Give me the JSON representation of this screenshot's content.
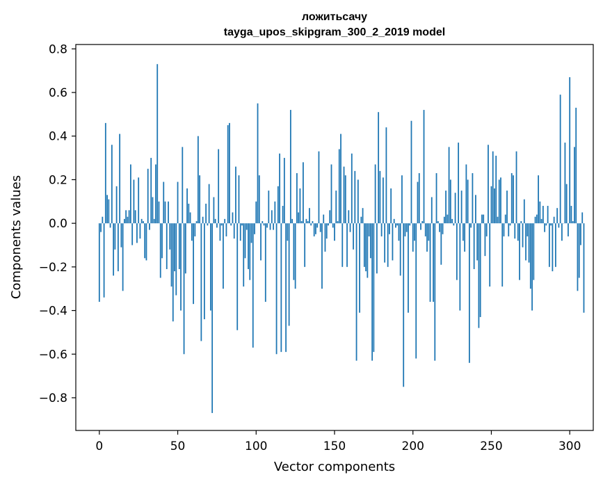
{
  "chart_data": {
    "type": "bar",
    "title": "ложитьсачу",
    "subtitle": "tayga_upos_skipgram_300_2_2019 model",
    "xlabel": "Vector components",
    "ylabel": "Components values",
    "xlim": [
      -15,
      315
    ],
    "ylim": [
      -0.95,
      0.82
    ],
    "xticks": [
      0,
      50,
      100,
      150,
      200,
      250,
      300
    ],
    "yticks": [
      -0.8,
      -0.6,
      -0.4,
      -0.2,
      0.0,
      0.2,
      0.4,
      0.6,
      0.8
    ],
    "ytick_labels": [
      "−0.8",
      "−0.6",
      "−0.4",
      "−0.2",
      "0.0",
      "0.2",
      "0.4",
      "0.6",
      "0.8"
    ],
    "grid": false,
    "bar_color": "#1f77b4",
    "values": [
      -0.36,
      -0.04,
      0.03,
      -0.34,
      0.46,
      0.13,
      0.11,
      -0.02,
      0.36,
      -0.24,
      -0.12,
      0.17,
      -0.22,
      0.41,
      -0.11,
      -0.31,
      0.02,
      0.06,
      0.03,
      0.06,
      0.27,
      -0.1,
      0.2,
      0.06,
      -0.09,
      0.21,
      -0.07,
      0.02,
      0.01,
      -0.16,
      -0.17,
      0.25,
      -0.03,
      0.3,
      0.12,
      0.02,
      0.27,
      0.73,
      0.1,
      -0.25,
      -0.16,
      0.19,
      0.1,
      -0.21,
      0.1,
      -0.12,
      -0.29,
      -0.45,
      -0.22,
      -0.33,
      0.19,
      -0.21,
      -0.4,
      0.35,
      -0.6,
      -0.23,
      0.16,
      0.09,
      0.05,
      -0.08,
      -0.37,
      -0.06,
      0.01,
      0.4,
      0.22,
      -0.54,
      0.03,
      -0.44,
      0.09,
      -0.01,
      0.18,
      -0.4,
      -0.87,
      0.12,
      0.02,
      -0.02,
      0.34,
      -0.08,
      -0.01,
      -0.3,
      0.02,
      -0.06,
      0.45,
      0.46,
      -0.01,
      0.05,
      -0.07,
      0.26,
      -0.49,
      0.22,
      -0.08,
      -0.01,
      -0.29,
      -0.16,
      -0.03,
      -0.21,
      -0.26,
      -0.09,
      -0.57,
      -0.05,
      0.1,
      0.55,
      0.22,
      -0.17,
      0.01,
      -0.01,
      -0.36,
      -0.02,
      0.15,
      -0.03,
      0.06,
      -0.03,
      0.1,
      -0.6,
      0.17,
      0.32,
      -0.59,
      0.08,
      0.3,
      -0.59,
      -0.08,
      -0.47,
      0.52,
      0.02,
      -0.26,
      -0.3,
      0.23,
      0.05,
      0.16,
      0.01,
      0.28,
      -0.2,
      0.02,
      0.01,
      0.07,
      -0.01,
      0.01,
      -0.06,
      -0.05,
      -0.02,
      0.33,
      -0.04,
      -0.3,
      0.04,
      -0.13,
      -0.07,
      -0.01,
      0.06,
      0.27,
      -0.02,
      -0.08,
      0.15,
      0.01,
      0.34,
      0.41,
      -0.2,
      0.26,
      0.22,
      -0.2,
      0.06,
      -0.04,
      0.32,
      -0.12,
      0.24,
      -0.63,
      0.2,
      -0.41,
      0.03,
      0.07,
      -0.2,
      -0.22,
      -0.25,
      -0.06,
      -0.16,
      -0.63,
      -0.59,
      0.27,
      -0.23,
      0.51,
      0.24,
      -0.06,
      0.21,
      -0.18,
      0.44,
      -0.2,
      -0.05,
      0.16,
      -0.17,
      0.02,
      -0.02,
      -0.01,
      -0.08,
      -0.24,
      0.22,
      -0.75,
      -0.06,
      -0.04,
      -0.41,
      -0.01,
      0.47,
      -0.13,
      -0.08,
      -0.62,
      0.19,
      0.23,
      -0.03,
      0.01,
      0.52,
      -0.06,
      -0.13,
      -0.08,
      -0.36,
      0.12,
      -0.36,
      -0.63,
      0.23,
      0.01,
      -0.04,
      -0.19,
      -0.05,
      0.03,
      0.15,
      0.04,
      0.35,
      0.2,
      0.02,
      -0.01,
      0.14,
      -0.26,
      0.37,
      -0.4,
      0.15,
      -0.08,
      -0.13,
      0.27,
      0.2,
      -0.64,
      -0.02,
      0.23,
      -0.21,
      0.13,
      -0.17,
      -0.48,
      -0.43,
      0.04,
      0.04,
      -0.15,
      -0.06,
      0.36,
      -0.29,
      0.17,
      0.33,
      0.16,
      0.31,
      0.03,
      0.2,
      0.21,
      -0.29,
      -0.06,
      0.04,
      0.15,
      -0.06,
      -0.01,
      0.23,
      0.22,
      -0.07,
      0.33,
      -0.08,
      -0.26,
      0.01,
      -0.11,
      0.11,
      -0.17,
      -0.06,
      -0.18,
      -0.3,
      -0.4,
      -0.26,
      0.03,
      0.04,
      0.22,
      0.1,
      0.02,
      0.08,
      -0.04,
      -0.01,
      0.08,
      -0.2,
      -0.01,
      -0.22,
      0.03,
      -0.2,
      0.07,
      -0.02,
      0.59,
      -0.08,
      0.0,
      0.37,
      0.18,
      -0.06,
      0.67,
      0.08,
      0.01,
      0.35,
      0.53,
      -0.31,
      -0.25,
      -0.1,
      0.05,
      -0.41
    ]
  }
}
